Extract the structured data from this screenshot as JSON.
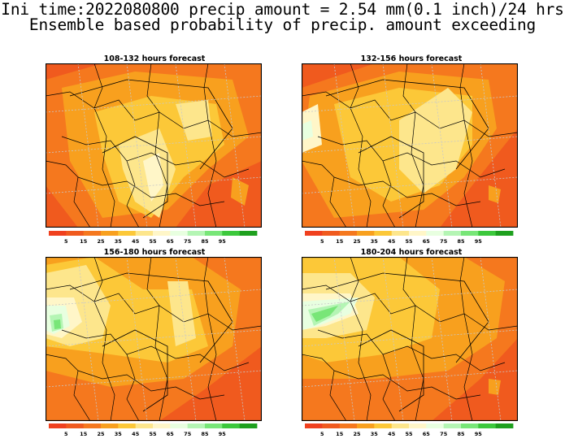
{
  "title": {
    "line1": "Ini time:2022080800 precip amount = 2.54 mm(0.1 inch)/24 hrs",
    "line2": "Ensemble based probability of precip. amount exceeding"
  },
  "panels": [
    {
      "id": "p1",
      "title": "108-132 hours forecast"
    },
    {
      "id": "p2",
      "title": "132-156 hours forecast"
    },
    {
      "id": "p3",
      "title": "156-180 hours forecast"
    },
    {
      "id": "p4",
      "title": "180-204 hours forecast"
    }
  ],
  "colorbar": {
    "labels": [
      "5",
      "15",
      "25",
      "35",
      "45",
      "55",
      "65",
      "75",
      "85",
      "95"
    ],
    "colors": [
      "#f0401e",
      "#f05a1e",
      "#f5781e",
      "#f8a01e",
      "#fcc838",
      "#fde68c",
      "#fff6c8",
      "#e8ffe0",
      "#b4f5b4",
      "#78e678",
      "#3cc83c",
      "#1ea01e"
    ]
  }
}
